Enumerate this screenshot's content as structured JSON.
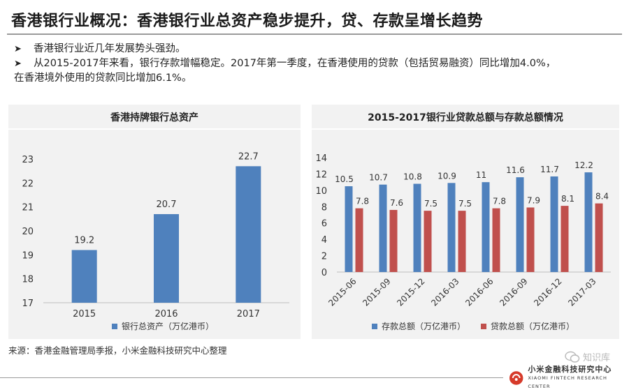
{
  "header": {
    "title": "香港银行业概况：香港银行业总资产稳步提升，贷、存款呈增长趋势"
  },
  "bullets": {
    "arrow_icon": "arrow-right-icon",
    "b1": "香港银行业近几年发展势头强劲。",
    "b2_line1": "从2015-2017年来看，银行存款增幅稳定。2017年第一季度，在香港使用的贷款（包括贸易融资）同比增加4.0%，",
    "b2_line2": "在香港境外使用的贷款同比增加6.1%。"
  },
  "chart1": {
    "panel_title": "香港持牌银行总资产"
  },
  "chart2": {
    "panel_title": "2015-2017银行业贷款总额与存款总额情况"
  },
  "chart_data": [
    {
      "type": "bar",
      "title": "香港持牌银行总资产",
      "categories": [
        "2015",
        "2016",
        "2017"
      ],
      "series": [
        {
          "name": "银行总资产（万亿港币）",
          "values": [
            19.2,
            20.7,
            22.7
          ],
          "color": "#4f81bd"
        }
      ],
      "ylim": [
        17,
        23
      ],
      "yticks": [
        17,
        18,
        19,
        20,
        21,
        22,
        23
      ],
      "grid": false,
      "legend_position": "bottom"
    },
    {
      "type": "bar",
      "title": "2015-2017银行业贷款总额与存款总额情况",
      "categories": [
        "2015-06",
        "2015-09",
        "2015-12",
        "2016-03",
        "2016-06",
        "2016-09",
        "2016-12",
        "2017-03"
      ],
      "series": [
        {
          "name": "存款总额（万亿港币）",
          "values": [
            10.5,
            10.7,
            10.8,
            10.9,
            11,
            11.6,
            11.7,
            12.2
          ],
          "labels": [
            "10.5",
            "10.7",
            "10.8",
            "10.9",
            "11",
            "11.6",
            "11.7",
            "12.2"
          ],
          "color": "#4f81bd"
        },
        {
          "name": "贷款总额（万亿港币）",
          "values": [
            7.8,
            7.6,
            7.5,
            7.5,
            7.8,
            7.9,
            8.1,
            8.4
          ],
          "labels": [
            "7.8",
            "7.6",
            "7.5",
            "7.5",
            "7.8",
            "7.9",
            "8.1",
            "8.4"
          ],
          "color": "#c0504d"
        }
      ],
      "ylim": [
        0,
        14
      ],
      "yticks": [
        0,
        2,
        4,
        6,
        8,
        10,
        12,
        14
      ],
      "grid": false,
      "legend_position": "bottom"
    }
  ],
  "footer": {
    "source": "来源：香港金融管理局季报，小米金融科技研究中心整理",
    "logo_icon": "xiaomi-fintech-logo-icon",
    "logo_cn": "小米金融科技研究中心",
    "logo_en": "XIAOMI FINTECH RESEARCH CENTER",
    "watermark_icon": "wechat-icon",
    "watermark_text": "知识库"
  }
}
